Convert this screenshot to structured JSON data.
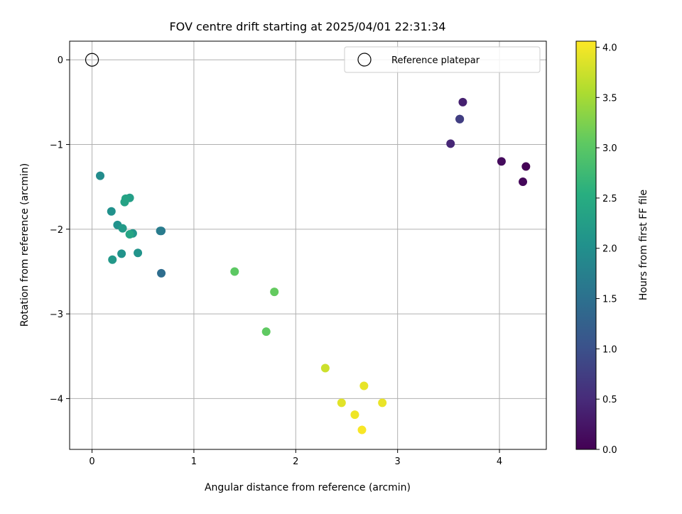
{
  "chart_data": {
    "type": "scatter",
    "title": "FOV centre drift starting at 2025/04/01 22:31:34",
    "xlabel": "Angular distance from reference (arcmin)",
    "ylabel": "Rotation from reference (arcmin)",
    "xlim": [
      -0.22,
      4.46
    ],
    "ylim": [
      -4.6,
      0.22
    ],
    "xticks": [
      0,
      1,
      2,
      3,
      4
    ],
    "yticks": [
      0,
      -1,
      -2,
      -3,
      -4
    ],
    "xtick_labels": [
      "0",
      "1",
      "2",
      "3",
      "4"
    ],
    "ytick_labels": [
      "0",
      "−1",
      "−2",
      "−3",
      "−4"
    ],
    "grid": true,
    "legend": {
      "position": "top-right",
      "entries": [
        {
          "label": "Reference platepar",
          "marker": "open-circle"
        }
      ]
    },
    "reference_point": {
      "x": 0.0,
      "y": 0.0
    },
    "colorbar": {
      "label": "Hours from first FF file",
      "colormap": "viridis",
      "range": [
        0.0,
        4.06
      ],
      "ticks": [
        0.0,
        0.5,
        1.0,
        1.5,
        2.0,
        2.5,
        3.0,
        3.5,
        4.0
      ],
      "tick_labels": [
        "0.0",
        "0.5",
        "1.0",
        "1.5",
        "2.0",
        "2.5",
        "3.0",
        "3.5",
        "4.0"
      ]
    },
    "points": [
      {
        "x": 4.26,
        "y": -1.26,
        "c": 0.02
      },
      {
        "x": 4.23,
        "y": -1.44,
        "c": 0.07
      },
      {
        "x": 4.02,
        "y": -1.2,
        "c": 0.12
      },
      {
        "x": 3.64,
        "y": -0.5,
        "c": 0.38
      },
      {
        "x": 3.52,
        "y": -0.99,
        "c": 0.45
      },
      {
        "x": 3.61,
        "y": -0.7,
        "c": 0.65
      },
      {
        "x": 3.61,
        "y": -0.7,
        "c": 0.75
      },
      {
        "x": 0.68,
        "y": -2.52,
        "c": 1.45
      },
      {
        "x": 0.68,
        "y": -2.02,
        "c": 1.62
      },
      {
        "x": 0.67,
        "y": -2.02,
        "c": 1.68
      },
      {
        "x": 0.08,
        "y": -1.37,
        "c": 1.95
      },
      {
        "x": 0.19,
        "y": -1.79,
        "c": 2.03
      },
      {
        "x": 0.25,
        "y": -1.95,
        "c": 2.05
      },
      {
        "x": 0.29,
        "y": -2.29,
        "c": 2.06
      },
      {
        "x": 0.45,
        "y": -2.28,
        "c": 2.08
      },
      {
        "x": 0.4,
        "y": -2.05,
        "c": 2.12
      },
      {
        "x": 0.2,
        "y": -2.36,
        "c": 2.15
      },
      {
        "x": 0.3,
        "y": -1.99,
        "c": 2.18
      },
      {
        "x": 0.37,
        "y": -1.63,
        "c": 2.25
      },
      {
        "x": 0.32,
        "y": -1.68,
        "c": 2.32
      },
      {
        "x": 0.33,
        "y": -1.64,
        "c": 2.35
      },
      {
        "x": 0.37,
        "y": -2.06,
        "c": 2.38
      },
      {
        "x": 1.4,
        "y": -2.5,
        "c": 3.03
      },
      {
        "x": 1.71,
        "y": -3.21,
        "c": 3.05
      },
      {
        "x": 1.79,
        "y": -2.74,
        "c": 3.08
      },
      {
        "x": 2.29,
        "y": -3.64,
        "c": 3.75
      },
      {
        "x": 2.45,
        "y": -4.05,
        "c": 3.88
      },
      {
        "x": 2.67,
        "y": -3.85,
        "c": 3.92
      },
      {
        "x": 2.85,
        "y": -4.05,
        "c": 3.94
      },
      {
        "x": 2.58,
        "y": -4.19,
        "c": 3.97
      },
      {
        "x": 2.65,
        "y": -4.37,
        "c": 4.03
      }
    ]
  }
}
